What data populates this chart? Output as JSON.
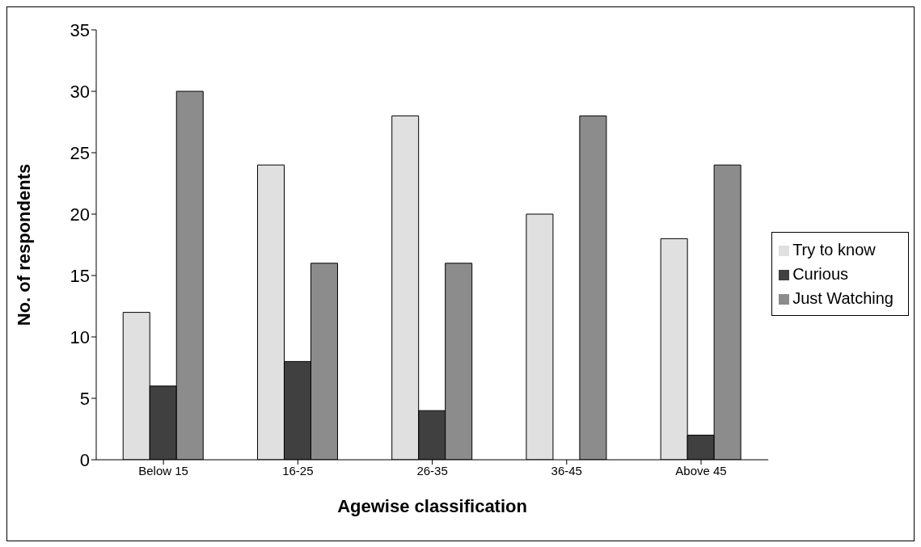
{
  "chart_data": {
    "type": "bar",
    "xlabel": "Agewise classification",
    "ylabel": "No. of respondents",
    "categories": [
      "Below 15",
      "16-25",
      "26-35",
      "36-45",
      "Above 45"
    ],
    "series": [
      {
        "name": "Try to know",
        "color": "#e0e0e0",
        "values": [
          12,
          24,
          28,
          20,
          18
        ]
      },
      {
        "name": "Curious",
        "color": "#404040",
        "values": [
          6,
          8,
          4,
          0,
          2
        ]
      },
      {
        "name": "Just Watching",
        "color": "#8c8c8c",
        "values": [
          30,
          16,
          16,
          28,
          24
        ]
      }
    ],
    "ylim": [
      0,
      35
    ],
    "yticks": [
      0,
      5,
      10,
      15,
      20,
      25,
      30,
      35
    ],
    "grid": false,
    "legend": "right"
  }
}
